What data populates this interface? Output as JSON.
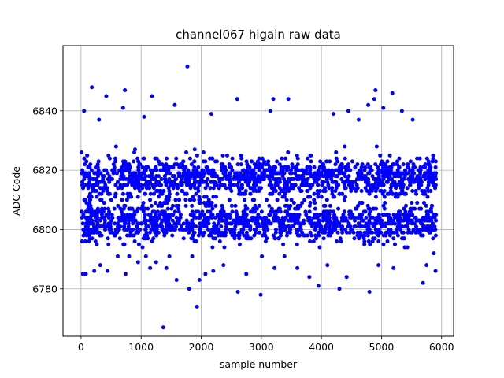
{
  "chart_data": {
    "type": "scatter",
    "title": "channel067 higain raw data",
    "xlabel": "sample number",
    "ylabel": "ADC Code",
    "xlim": [
      -300,
      6200
    ],
    "ylim": [
      6764,
      6862
    ],
    "xticks": [
      0,
      1000,
      2000,
      3000,
      4000,
      5000,
      6000
    ],
    "yticks": [
      6780,
      6800,
      6820,
      6840
    ],
    "grid": true,
    "series_color": "#0000ff",
    "points": [
      [
        10,
        6826
      ],
      [
        30,
        6785
      ],
      [
        50,
        6840
      ],
      [
        80,
        6785
      ],
      [
        130,
        6806
      ],
      [
        180,
        6848
      ],
      [
        220,
        6786
      ],
      [
        300,
        6837
      ],
      [
        320,
        6788
      ],
      [
        420,
        6845
      ],
      [
        440,
        6786
      ],
      [
        520,
        6799
      ],
      [
        610,
        6791
      ],
      [
        700,
        6841
      ],
      [
        730,
        6847
      ],
      [
        740,
        6785
      ],
      [
        800,
        6791
      ],
      [
        950,
        6789
      ],
      [
        1050,
        6838
      ],
      [
        1080,
        6791
      ],
      [
        1150,
        6787
      ],
      [
        1180,
        6845
      ],
      [
        1250,
        6789
      ],
      [
        1370,
        6767
      ],
      [
        1420,
        6787
      ],
      [
        1470,
        6791
      ],
      [
        1560,
        6842
      ],
      [
        1590,
        6783
      ],
      [
        1770,
        6855
      ],
      [
        1800,
        6780
      ],
      [
        1850,
        6791
      ],
      [
        1930,
        6774
      ],
      [
        1970,
        6783
      ],
      [
        2070,
        6785
      ],
      [
        2170,
        6839
      ],
      [
        2200,
        6786
      ],
      [
        2370,
        6788
      ],
      [
        2600,
        6844
      ],
      [
        2610,
        6779
      ],
      [
        2750,
        6785
      ],
      [
        2990,
        6778
      ],
      [
        3010,
        6791
      ],
      [
        3150,
        6840
      ],
      [
        3200,
        6844
      ],
      [
        3220,
        6787
      ],
      [
        3450,
        6844
      ],
      [
        3600,
        6787
      ],
      [
        3800,
        6784
      ],
      [
        3950,
        6781
      ],
      [
        4100,
        6788
      ],
      [
        4200,
        6839
      ],
      [
        4300,
        6780
      ],
      [
        4420,
        6784
      ],
      [
        4450,
        6840
      ],
      [
        4620,
        6837
      ],
      [
        4780,
        6842
      ],
      [
        4800,
        6779
      ],
      [
        4880,
        6844
      ],
      [
        4900,
        6847
      ],
      [
        4950,
        6788
      ],
      [
        5030,
        6841
      ],
      [
        5180,
        6846
      ],
      [
        5200,
        6787
      ],
      [
        5340,
        6840
      ],
      [
        5520,
        6837
      ],
      [
        5690,
        6782
      ],
      [
        5750,
        6788
      ],
      [
        5870,
        6792
      ],
      [
        5900,
        6786
      ]
    ]
  }
}
